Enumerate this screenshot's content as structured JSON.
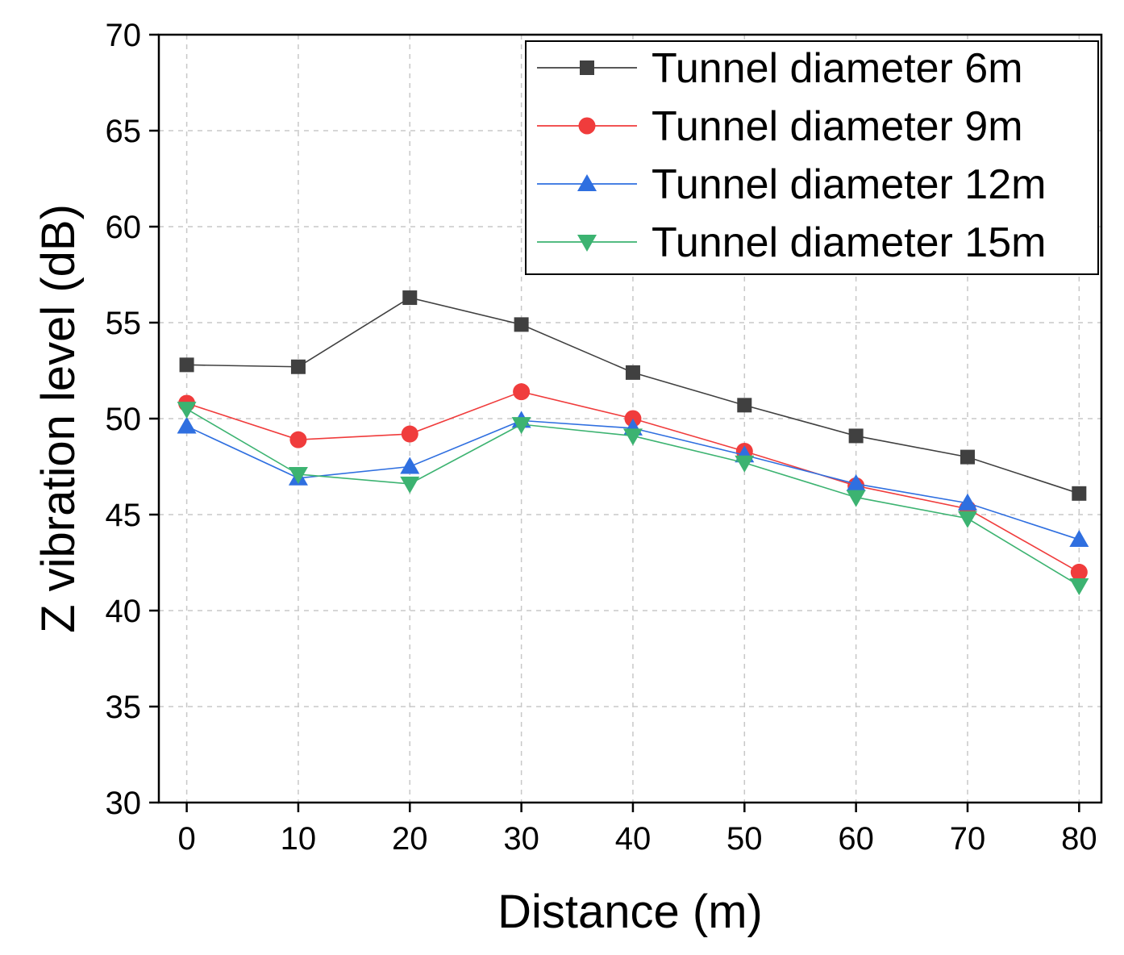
{
  "chart_data": {
    "type": "line",
    "title": "",
    "xlabel": "Distance (m)",
    "ylabel": "Z vibration level (dB)",
    "x": [
      0,
      10,
      20,
      30,
      40,
      50,
      60,
      70,
      80
    ],
    "xlim": [
      -2.5,
      82
    ],
    "ylim": [
      30,
      70
    ],
    "xticks": [
      0,
      10,
      20,
      30,
      40,
      50,
      60,
      70,
      80
    ],
    "yticks": [
      30,
      35,
      40,
      45,
      50,
      55,
      60,
      65,
      70
    ],
    "grid": true,
    "legend_position": "top-right",
    "series": [
      {
        "name": "Tunnel diameter 6m",
        "color": "#404040",
        "marker": "square",
        "values": [
          52.8,
          52.7,
          56.3,
          54.9,
          52.4,
          50.7,
          49.1,
          48.0,
          46.1
        ]
      },
      {
        "name": "Tunnel diameter 9m",
        "color": "#f03c3c",
        "marker": "circle",
        "values": [
          50.8,
          48.9,
          49.2,
          51.4,
          50.0,
          48.3,
          46.5,
          45.3,
          42.0
        ]
      },
      {
        "name": "Tunnel diameter 12m",
        "color": "#2f6fe0",
        "marker": "triangle-up",
        "values": [
          49.6,
          46.9,
          47.5,
          49.9,
          49.5,
          48.1,
          46.6,
          45.6,
          43.7
        ]
      },
      {
        "name": "Tunnel diameter 15m",
        "color": "#3cb371",
        "marker": "triangle-down",
        "values": [
          50.5,
          47.1,
          46.6,
          49.7,
          49.1,
          47.7,
          45.9,
          44.8,
          41.3
        ]
      }
    ]
  }
}
